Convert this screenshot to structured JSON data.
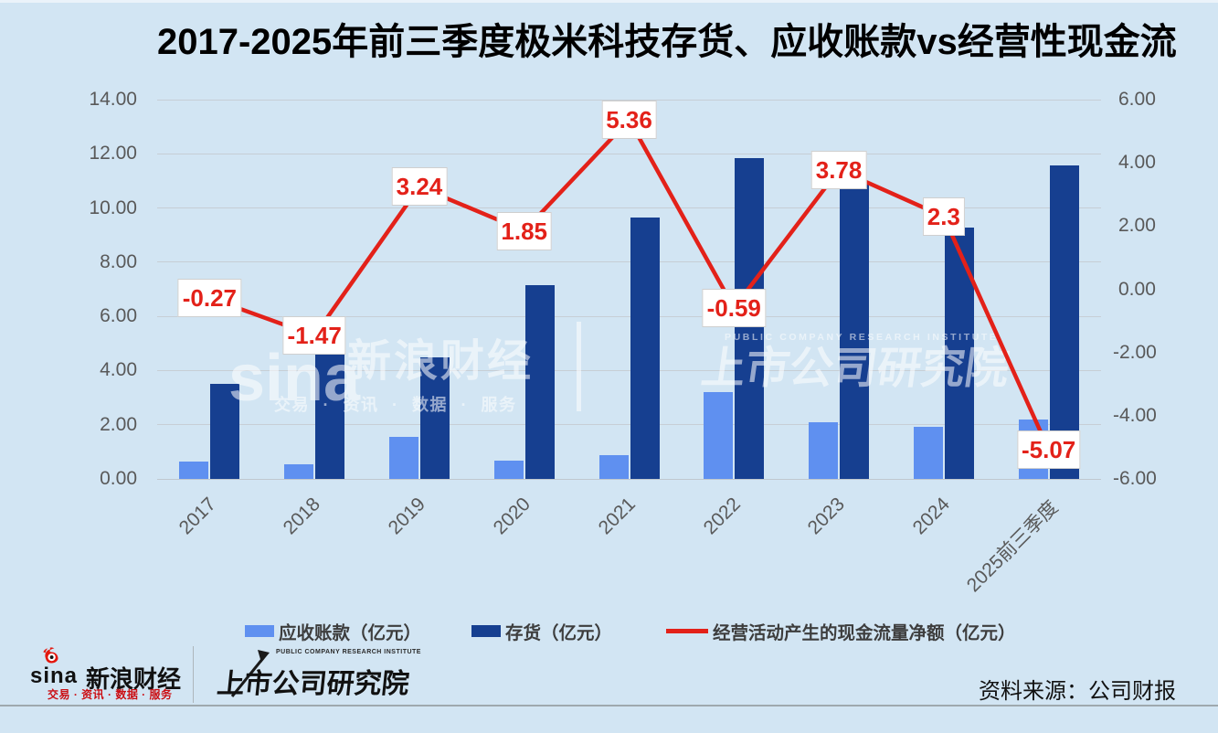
{
  "title": "2017-2025年前三季度极米科技存货、应收账款vs经营性现金流",
  "chart_data": {
    "type": "bar",
    "categories": [
      "2017",
      "2018",
      "2019",
      "2020",
      "2021",
      "2022",
      "2023",
      "2024",
      "2025前三季度"
    ],
    "series": [
      {
        "name": "应收账款（亿元）",
        "type": "bar",
        "axis": "left",
        "color": "#5f90f0",
        "values": [
          0.65,
          0.55,
          1.55,
          0.68,
          0.87,
          3.2,
          2.1,
          1.92,
          2.2
        ]
      },
      {
        "name": "存货（亿元）",
        "type": "bar",
        "axis": "left",
        "color": "#163f90",
        "values": [
          3.5,
          4.6,
          4.47,
          7.15,
          9.65,
          11.85,
          10.87,
          9.28,
          11.58
        ]
      },
      {
        "name": "经营活动产生的现金流量净额（亿元）",
        "type": "line",
        "axis": "right",
        "color": "#e32119",
        "values": [
          -0.27,
          -1.47,
          3.24,
          1.85,
          5.36,
          -0.59,
          3.78,
          2.3,
          -5.07
        ],
        "labels": [
          "-0.27",
          "-1.47",
          "3.24",
          "1.85",
          "5.36",
          "-0.59",
          "3.78",
          "2.3",
          "-5.07"
        ]
      }
    ],
    "left_axis": {
      "min": 0,
      "max": 14,
      "step": 2,
      "labels": [
        "0.00",
        "2.00",
        "4.00",
        "6.00",
        "8.00",
        "10.00",
        "12.00",
        "14.00"
      ]
    },
    "right_axis": {
      "min": -6,
      "max": 6,
      "step": 2,
      "labels": [
        "-6.00",
        "-4.00",
        "-2.00",
        "0.00",
        "2.00",
        "4.00",
        "6.00"
      ]
    },
    "grid": true,
    "legend_position": "bottom"
  },
  "watermark": {
    "sina": "sina",
    "brand": "新浪财经",
    "services": "交易 · 资讯 · 数据 · 服务",
    "institute_en": "PUBLIC COMPANY RESEARCH INSTITUTE",
    "institute": "上市公司研究院"
  },
  "footer": {
    "sina": "sina",
    "brand": "新浪财经",
    "services": "交易 · 资讯 · 数据 · 服务",
    "institute_en": "PUBLIC COMPANY RESEARCH INSTITUTE",
    "institute": "上市公司研究院",
    "source": "资料来源：公司财报"
  }
}
